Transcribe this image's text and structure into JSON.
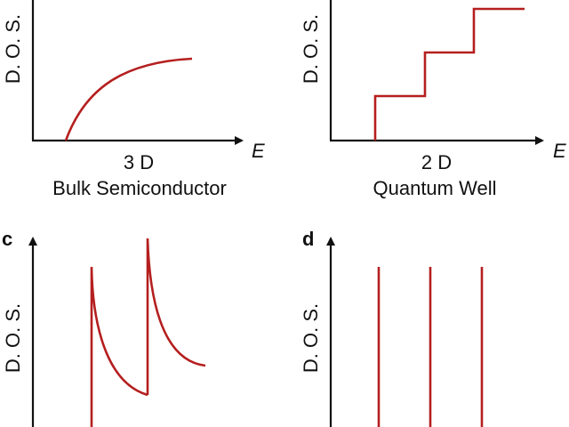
{
  "colors": {
    "curve": "#b51f1f",
    "axis": "#111111",
    "text": "#111111",
    "background": "#ffffff"
  },
  "panels": {
    "a": {
      "ylabel": "D. O. S.",
      "xlabel": "E",
      "dimension": "3 D",
      "caption": "Bulk Semiconductor"
    },
    "b": {
      "ylabel": "D. O. S.",
      "xlabel": "E",
      "dimension": "2 D",
      "caption": "Quantum Well"
    },
    "c": {
      "panel_letter": "c",
      "ylabel": "D. O. S."
    },
    "d": {
      "panel_letter": "d",
      "ylabel": "D. O. S."
    }
  }
}
